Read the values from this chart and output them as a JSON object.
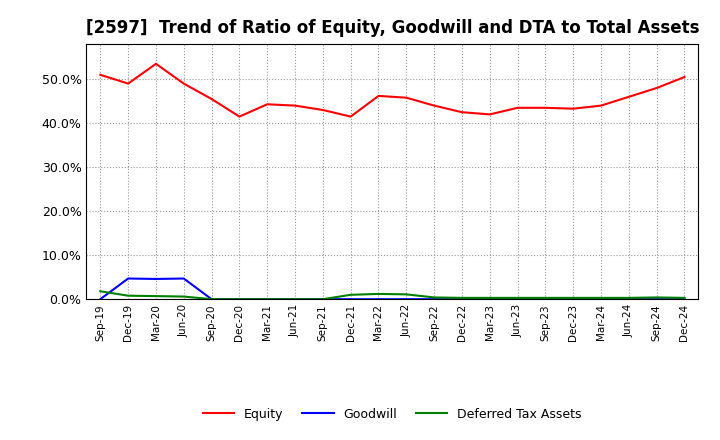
{
  "title": "[2597]  Trend of Ratio of Equity, Goodwill and DTA to Total Assets",
  "x_labels": [
    "Sep-19",
    "Dec-19",
    "Mar-20",
    "Jun-20",
    "Sep-20",
    "Dec-20",
    "Mar-21",
    "Jun-21",
    "Sep-21",
    "Dec-21",
    "Mar-22",
    "Jun-22",
    "Sep-22",
    "Dec-22",
    "Mar-23",
    "Jun-23",
    "Sep-23",
    "Dec-23",
    "Mar-24",
    "Jun-24",
    "Sep-24",
    "Dec-24"
  ],
  "equity": [
    0.51,
    0.49,
    0.535,
    0.49,
    0.455,
    0.415,
    0.443,
    0.44,
    0.43,
    0.415,
    0.462,
    0.458,
    0.44,
    0.425,
    0.42,
    0.435,
    0.435,
    0.433,
    0.44,
    0.46,
    0.48,
    0.505
  ],
  "goodwill": [
    0.0,
    0.047,
    0.046,
    0.047,
    0.0,
    0.0,
    0.0,
    0.0,
    0.0,
    0.0,
    0.0,
    0.0,
    0.0,
    0.0,
    0.0,
    0.0,
    0.0,
    0.0,
    0.0,
    0.0,
    0.0,
    0.0
  ],
  "dta": [
    0.018,
    0.008,
    0.007,
    0.006,
    0.0,
    0.0,
    0.0,
    0.0,
    0.0,
    0.01,
    0.012,
    0.011,
    0.004,
    0.003,
    0.003,
    0.003,
    0.003,
    0.003,
    0.003,
    0.003,
    0.004,
    0.003
  ],
  "equity_color": "#FF0000",
  "goodwill_color": "#0000FF",
  "dta_color": "#008000",
  "bg_color": "#FFFFFF",
  "plot_bg_color": "#FFFFFF",
  "ylim": [
    0.0,
    0.58
  ],
  "yticks": [
    0.0,
    0.1,
    0.2,
    0.3,
    0.4,
    0.5
  ],
  "title_fontsize": 12,
  "tick_fontsize": 9,
  "xtick_fontsize": 7.5,
  "legend_labels": [
    "Equity",
    "Goodwill",
    "Deferred Tax Assets"
  ]
}
